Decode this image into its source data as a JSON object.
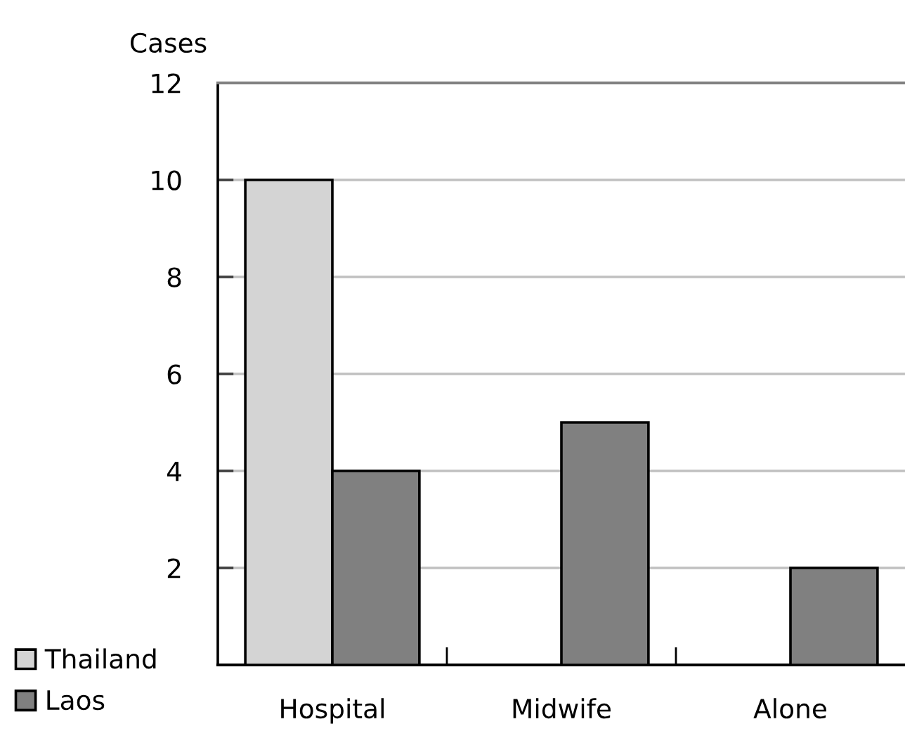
{
  "chart_data": {
    "type": "bar",
    "ylabel": "Cases",
    "categories": [
      "Hospital",
      "Midwife",
      "Alone"
    ],
    "series": [
      {
        "name": "Thailand",
        "color": "#d4d4d4",
        "values": [
          10,
          null,
          null
        ]
      },
      {
        "name": "Laos",
        "color": "#808080",
        "values": [
          4,
          5,
          2
        ]
      }
    ],
    "ylim": [
      0,
      12
    ],
    "yticks": [
      2,
      4,
      6,
      8,
      10,
      12
    ],
    "grid": "y",
    "legend": "bottom left"
  }
}
